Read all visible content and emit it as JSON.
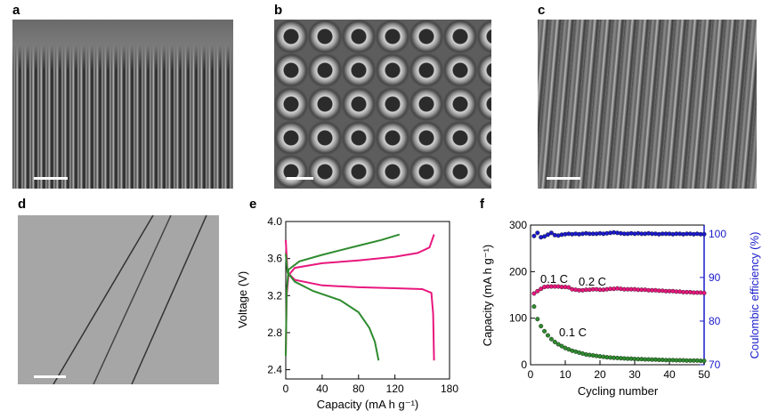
{
  "panel_labels": {
    "a": "a",
    "b": "b",
    "c": "c",
    "d": "d",
    "e": "e",
    "f": "f"
  },
  "chart_data": [
    {
      "panel": "e",
      "type": "line",
      "xlabel": "Capacity (mA h g⁻¹)",
      "ylabel": "Voltage (V)",
      "xlim": [
        0,
        180
      ],
      "ylim": [
        2.3,
        4.0
      ],
      "xticks": [
        "0",
        "40",
        "80",
        "120",
        "180"
      ],
      "xtick_values": [
        0,
        40,
        80,
        120,
        180
      ],
      "yticks": [
        "2.4",
        "2.8",
        "3.2",
        "3.6",
        "4.0"
      ],
      "ytick_values": [
        2.4,
        2.8,
        3.2,
        3.6,
        4.0
      ],
      "series": [
        {
          "color": "#e8177d",
          "points": [
            [
              0,
              2.55
            ],
            [
              1,
              3.2
            ],
            [
              3,
              3.42
            ],
            [
              10,
              3.5
            ],
            [
              40,
              3.55
            ],
            [
              80,
              3.58
            ],
            [
              120,
              3.62
            ],
            [
              145,
              3.66
            ],
            [
              158,
              3.72
            ],
            [
              163,
              3.86
            ]
          ]
        },
        {
          "color": "#e8177d",
          "points": [
            [
              0,
              3.8
            ],
            [
              2,
              3.45
            ],
            [
              10,
              3.37
            ],
            [
              40,
              3.31
            ],
            [
              80,
              3.29
            ],
            [
              120,
              3.28
            ],
            [
              150,
              3.27
            ],
            [
              160,
              3.23
            ],
            [
              162,
              3.0
            ],
            [
              163,
              2.5
            ]
          ]
        },
        {
          "color": "#2e8b2e",
          "points": [
            [
              0,
              2.55
            ],
            [
              1,
              3.25
            ],
            [
              3,
              3.48
            ],
            [
              15,
              3.57
            ],
            [
              40,
              3.64
            ],
            [
              80,
              3.74
            ],
            [
              105,
              3.8
            ],
            [
              125,
              3.86
            ]
          ]
        },
        {
          "color": "#2e8b2e",
          "points": [
            [
              0,
              3.65
            ],
            [
              2,
              3.45
            ],
            [
              10,
              3.35
            ],
            [
              30,
              3.25
            ],
            [
              60,
              3.15
            ],
            [
              80,
              3.02
            ],
            [
              92,
              2.85
            ],
            [
              98,
              2.7
            ],
            [
              102,
              2.5
            ]
          ]
        }
      ]
    },
    {
      "panel": "f",
      "type": "scatter",
      "xlabel": "Cycling number",
      "ylabel": "Capacity (mA h g⁻¹)",
      "ylabel_right": "Coulombic efficiency (%)",
      "xlim": [
        0,
        50
      ],
      "ylim": [
        0,
        300
      ],
      "ylim_right": [
        70,
        102
      ],
      "xticks": [
        "0",
        "10",
        "20",
        "30",
        "40",
        "50"
      ],
      "xtick_values": [
        0,
        10,
        20,
        30,
        40,
        50
      ],
      "yticks": [
        "0",
        "100",
        "200",
        "300"
      ],
      "ytick_values": [
        0,
        100,
        200,
        300
      ],
      "yticks_right": [
        "70",
        "80",
        "90",
        "100"
      ],
      "ytick_values_right": [
        70,
        80,
        90,
        100
      ],
      "annotations": [
        "0.1 C",
        "0.2 C",
        "0.1 C"
      ],
      "series": [
        {
          "name": "",
          "color": "#e8177d",
          "axis": "left",
          "y": [
            153,
            158,
            163,
            167,
            168,
            168,
            168,
            168,
            167,
            167,
            166,
            162,
            161,
            160,
            160,
            161,
            161,
            162,
            162,
            161,
            161,
            162,
            163,
            163,
            164,
            163,
            162,
            162,
            162,
            162,
            161,
            161,
            161,
            160,
            160,
            160,
            159,
            159,
            158,
            158,
            158,
            157,
            157,
            156,
            156,
            156,
            155,
            155,
            155,
            154
          ]
        },
        {
          "name": "",
          "color": "#2e8b2e",
          "axis": "left",
          "y": [
            125,
            98,
            83,
            72,
            63,
            55,
            49,
            44,
            40,
            36,
            33,
            30,
            28,
            26,
            24,
            22,
            21,
            20,
            19,
            18,
            17,
            16,
            15.5,
            15,
            14.5,
            14,
            13.5,
            13,
            13,
            12.5,
            12,
            12,
            11.5,
            11.5,
            11,
            11,
            10.5,
            10.5,
            10,
            10,
            10,
            9.5,
            9.5,
            9.5,
            9,
            9,
            9,
            9,
            8.5,
            8.5
          ]
        },
        {
          "name": "",
          "color": "#1a1acc",
          "axis": "right",
          "y": [
            99.5,
            100.2,
            99.2,
            99.4,
            99.8,
            100.2,
            99.7,
            99.6,
            99.8,
            99.9,
            100,
            99.9,
            100,
            99.9,
            100,
            100.1,
            100,
            100,
            100,
            100.1,
            100,
            100.1,
            100.2,
            100.3,
            100.2,
            100.1,
            100,
            100,
            100.1,
            100,
            100.1,
            100,
            100,
            100.1,
            100,
            100,
            99.9,
            100,
            100,
            100,
            99.9,
            100,
            100,
            99.9,
            100,
            100,
            99.9,
            100,
            99.9,
            99.9
          ]
        }
      ]
    }
  ]
}
